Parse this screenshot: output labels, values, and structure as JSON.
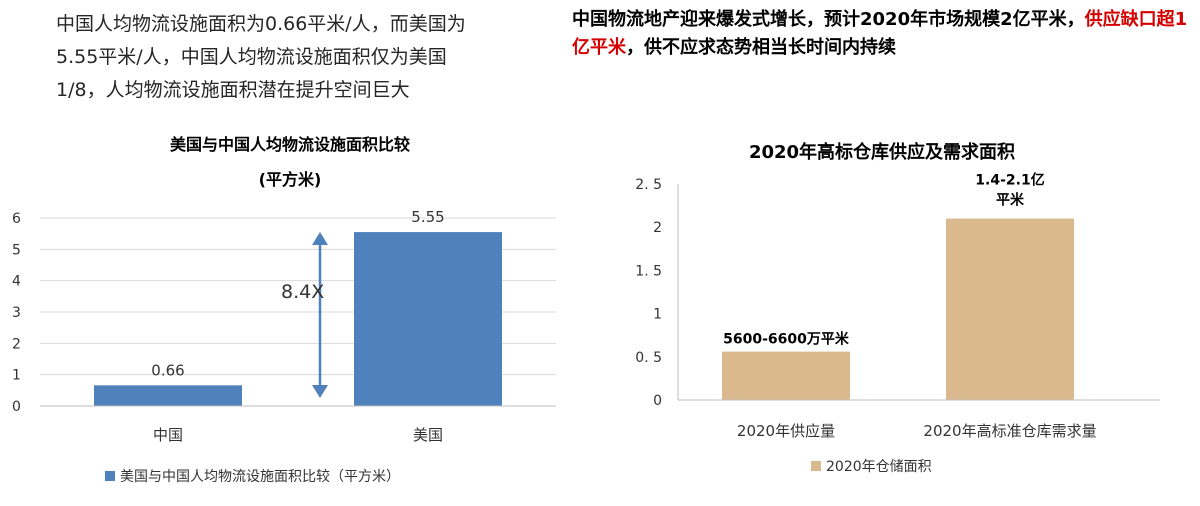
{
  "intro": {
    "line1": "中国人均物流设施面积为0.66平米/人，而美国为",
    "line2": "5.55平米/人，中国人均物流设施面积仅为美国",
    "line3": "1/8，人均物流设施面积潜在提升空间巨大"
  },
  "headline": {
    "part1": "中国物流地产迎来爆发式增长，预计2020年市场规模2亿平米，",
    "red": "供应缺口超1亿平米",
    "part2": "，供不应求态势相当长时间内持续"
  },
  "colors": {
    "blue": "#4f81bd",
    "tan": "#dbb98f",
    "red_text": "#d50000",
    "grid": "#d9d9d9"
  },
  "chart_data": [
    {
      "type": "bar",
      "title": "美国与中国人均物流设施面积比较",
      "subtitle": "(平方米)",
      "categories": [
        "中国",
        "美国"
      ],
      "series": [
        {
          "name": "美国与中国人均物流设施面积比较（平方米）",
          "values": [
            0.66,
            5.55
          ]
        }
      ],
      "data_labels": [
        "0.66",
        "5.55"
      ],
      "yticks": [
        "0",
        "1",
        "2",
        "3",
        "4",
        "5",
        "6"
      ],
      "ylim": [
        0,
        6
      ],
      "grid": true,
      "legend": "bottom",
      "annotation": {
        "text": "8.4X",
        "arrow": "double-headed vertical between bars"
      }
    },
    {
      "type": "bar",
      "title": "2020年高标仓库供应及需求面积",
      "categories": [
        "2020年供应量",
        "2020年高标准仓库需求量"
      ],
      "series": [
        {
          "name": "2020年仓储面积",
          "values": [
            0.56,
            2.1
          ]
        }
      ],
      "data_labels": [
        "5600-6600万平米",
        "1.4-2.1亿",
        "平米"
      ],
      "yticks": [
        "0",
        "0. 5",
        "1",
        "1. 5",
        "2",
        "2. 5"
      ],
      "ylim": [
        0,
        2.5
      ],
      "grid": false,
      "legend": "bottom"
    }
  ]
}
